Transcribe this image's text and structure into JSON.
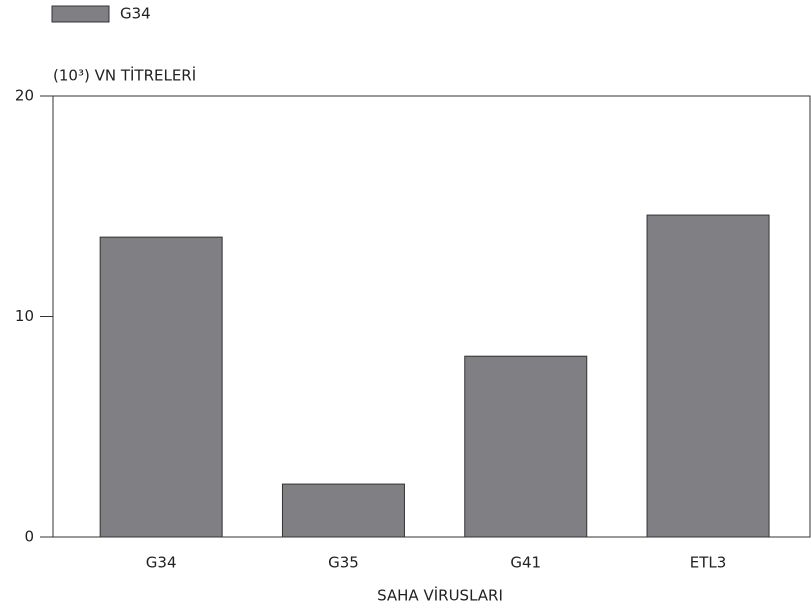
{
  "chart_data": {
    "type": "bar",
    "y_axis_label": "(10³) VN TİTRELERİ",
    "x_axis_label": "SAHA VİRUSLARI",
    "categories": [
      "G34",
      "G35",
      "G41",
      "ETL3"
    ],
    "series": [
      {
        "name": "G34",
        "color": "#808084",
        "values": [
          13.6,
          2.4,
          8.2,
          14.6
        ]
      }
    ],
    "ylim": [
      0,
      20
    ],
    "yticks": [
      0,
      10,
      20
    ],
    "legend": "top-left"
  }
}
